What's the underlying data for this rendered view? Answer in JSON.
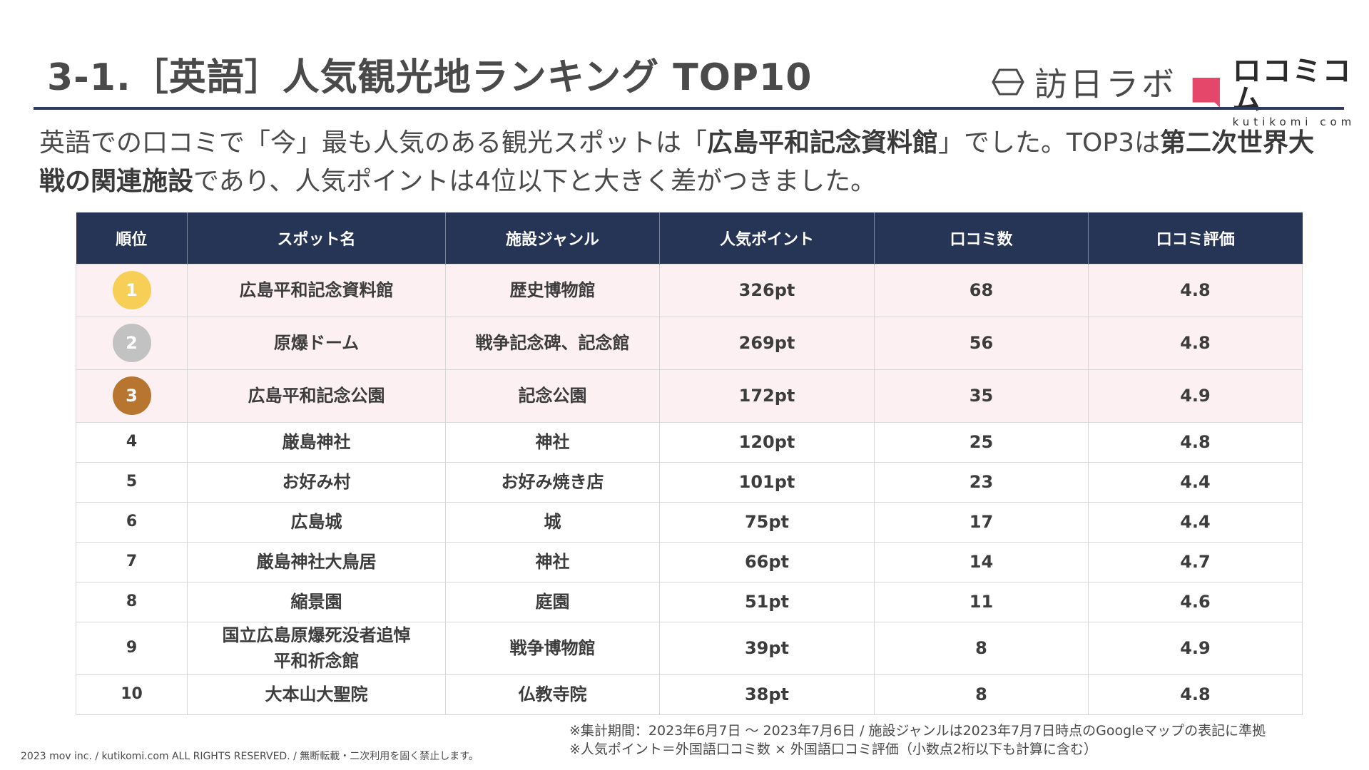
{
  "slide_title": "3-1.［英語］人気観光地ランキング TOP10",
  "logos": {
    "houjin_lab": "訪日ラボ",
    "kutikomi_main": "ロコミコム",
    "kutikomi_sub": "kutikomi com",
    "kutikomi_color": "#e5476a"
  },
  "lead": {
    "p1": "英語での口コミで「今」最も人気のある観光スポットは「",
    "b1": "広島平和記念資料館",
    "p2": "」でした。TOP3は",
    "b2": "第二次世界大戦の関連施設",
    "p3": "であり、人気ポイントは4位以下と大きく差がつきました。"
  },
  "table": {
    "headers": [
      "順位",
      "スポット名",
      "施設ジャンル",
      "人気ポイント",
      "口コミ数",
      "口コミ評価"
    ],
    "rows": [
      {
        "rank": "1",
        "spot": "広島平和記念資料館",
        "genre": "歴史博物館",
        "points": "326pt",
        "reviews": "68",
        "rating": "4.8",
        "medal_color": "#f7cf57"
      },
      {
        "rank": "2",
        "spot": "原爆ドーム",
        "genre": "戦争記念碑、記念館",
        "points": "269pt",
        "reviews": "56",
        "rating": "4.8",
        "medal_color": "#c2c2c2"
      },
      {
        "rank": "3",
        "spot": "広島平和記念公園",
        "genre": "記念公園",
        "points": "172pt",
        "reviews": "35",
        "rating": "4.9",
        "medal_color": "#b8752f"
      },
      {
        "rank": "4",
        "spot": "厳島神社",
        "genre": "神社",
        "points": "120pt",
        "reviews": "25",
        "rating": "4.8"
      },
      {
        "rank": "5",
        "spot": "お好み村",
        "genre": "お好み焼き店",
        "points": "101pt",
        "reviews": "23",
        "rating": "4.4"
      },
      {
        "rank": "6",
        "spot": "広島城",
        "genre": "城",
        "points": "75pt",
        "reviews": "17",
        "rating": "4.4"
      },
      {
        "rank": "7",
        "spot": "厳島神社大鳥居",
        "genre": "神社",
        "points": "66pt",
        "reviews": "14",
        "rating": "4.7"
      },
      {
        "rank": "8",
        "spot": "縮景園",
        "genre": "庭園",
        "points": "51pt",
        "reviews": "11",
        "rating": "4.6"
      },
      {
        "rank": "9",
        "spot_line1": "国立広島原爆死没者追悼",
        "spot_line2": "平和祈念館",
        "genre": "戦争博物館",
        "points": "39pt",
        "reviews": "8",
        "rating": "4.9"
      },
      {
        "rank": "10",
        "spot": "大本山大聖院",
        "genre": "仏教寺院",
        "points": "38pt",
        "reviews": "8",
        "rating": "4.8"
      }
    ]
  },
  "notes": {
    "line1": "※集計期間：2023年6月7日 〜 2023年7月6日 / 施設ジャンルは2023年7月7日時点のGoogleマップの表記に準拠",
    "line2": "※人気ポイント＝外国語口コミ数 × 外国語口コミ評価（小数点2桁以下も計算に含む）"
  },
  "copyright": "2023 mov inc. / kutikomi.com ALL RIGHTS RESERVED. / 無断転載・二次利用を固く禁止します。"
}
